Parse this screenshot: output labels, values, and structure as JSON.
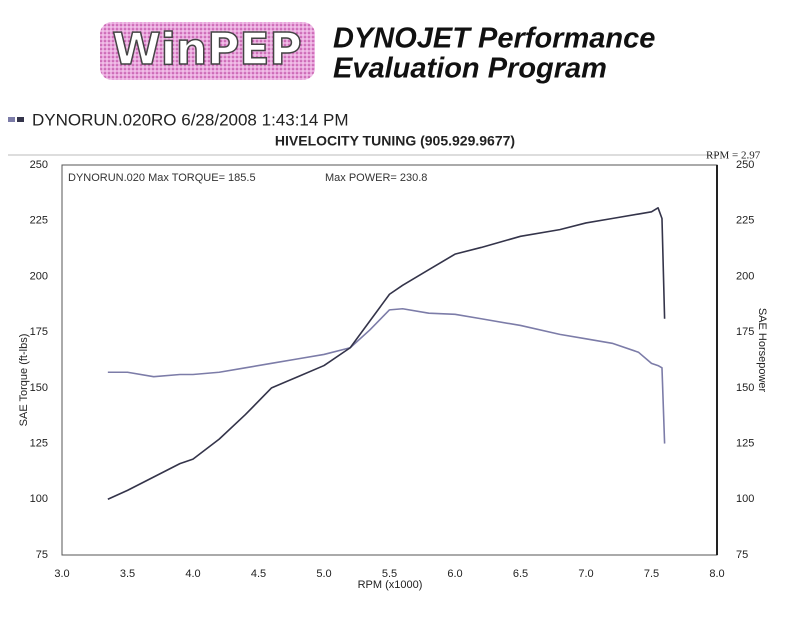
{
  "header": {
    "logo": "WinPEP",
    "title_line1": "DYNOJET Performance",
    "title_line2": "Evaluation Program"
  },
  "chart_data": {
    "type": "line",
    "run_label": "DYNORUN.020RO  6/28/2008 1:43:14 PM",
    "title": "HIVELOCITY TUNING (905.929.9677)",
    "rpm_note": "RPM = 2.97",
    "annotations": [
      "DYNORUN.020  Max TORQUE= 185.5",
      "Max POWER= 230.8"
    ],
    "xlabel": "RPM (x1000)",
    "ylabel": "SAE Torque (ft-lbs)",
    "y2label": "SAE Horsepower",
    "x": [
      3.35,
      3.5,
      3.7,
      3.9,
      4.0,
      4.2,
      4.4,
      4.6,
      4.8,
      5.0,
      5.2,
      5.35,
      5.5,
      5.6,
      5.8,
      6.0,
      6.2,
      6.5,
      6.8,
      7.0,
      7.2,
      7.4,
      7.5,
      7.55,
      7.58,
      7.6
    ],
    "series": [
      {
        "color": "#7c7ca8",
        "values": [
          157,
          157,
          155,
          156,
          156,
          157,
          159,
          161,
          163,
          165,
          168,
          176,
          185,
          185.5,
          183.5,
          183,
          181,
          178,
          174,
          172,
          170,
          166,
          161,
          160,
          159,
          125
        ]
      },
      {
        "color": "#34344a",
        "axis": "y2",
        "values": [
          100,
          104,
          110,
          116,
          118,
          127,
          138,
          150,
          155,
          160,
          168,
          180,
          192,
          196,
          203,
          210,
          213,
          218,
          221,
          224,
          226,
          228,
          229,
          230.8,
          226,
          181
        ]
      }
    ],
    "xlim": [
      3,
      8
    ],
    "xticks": [
      {
        "value": 3,
        "label": "3.0"
      },
      3.5,
      {
        "value": 4,
        "label": "4.0"
      },
      4.5,
      {
        "value": 5,
        "label": "5.0"
      },
      5.5,
      {
        "value": 6,
        "label": "6.0"
      },
      6.5,
      {
        "value": 7,
        "label": "7.0"
      },
      7.5,
      {
        "value": 8,
        "label": "8.0"
      }
    ],
    "ylim": [
      75,
      250
    ],
    "yticks": [
      75,
      100,
      125,
      150,
      175,
      200,
      225,
      250
    ],
    "y2lim": [
      75,
      250
    ],
    "y2ticks": [
      75,
      100,
      125,
      150,
      175,
      200,
      225,
      250
    ],
    "grid": false
  }
}
